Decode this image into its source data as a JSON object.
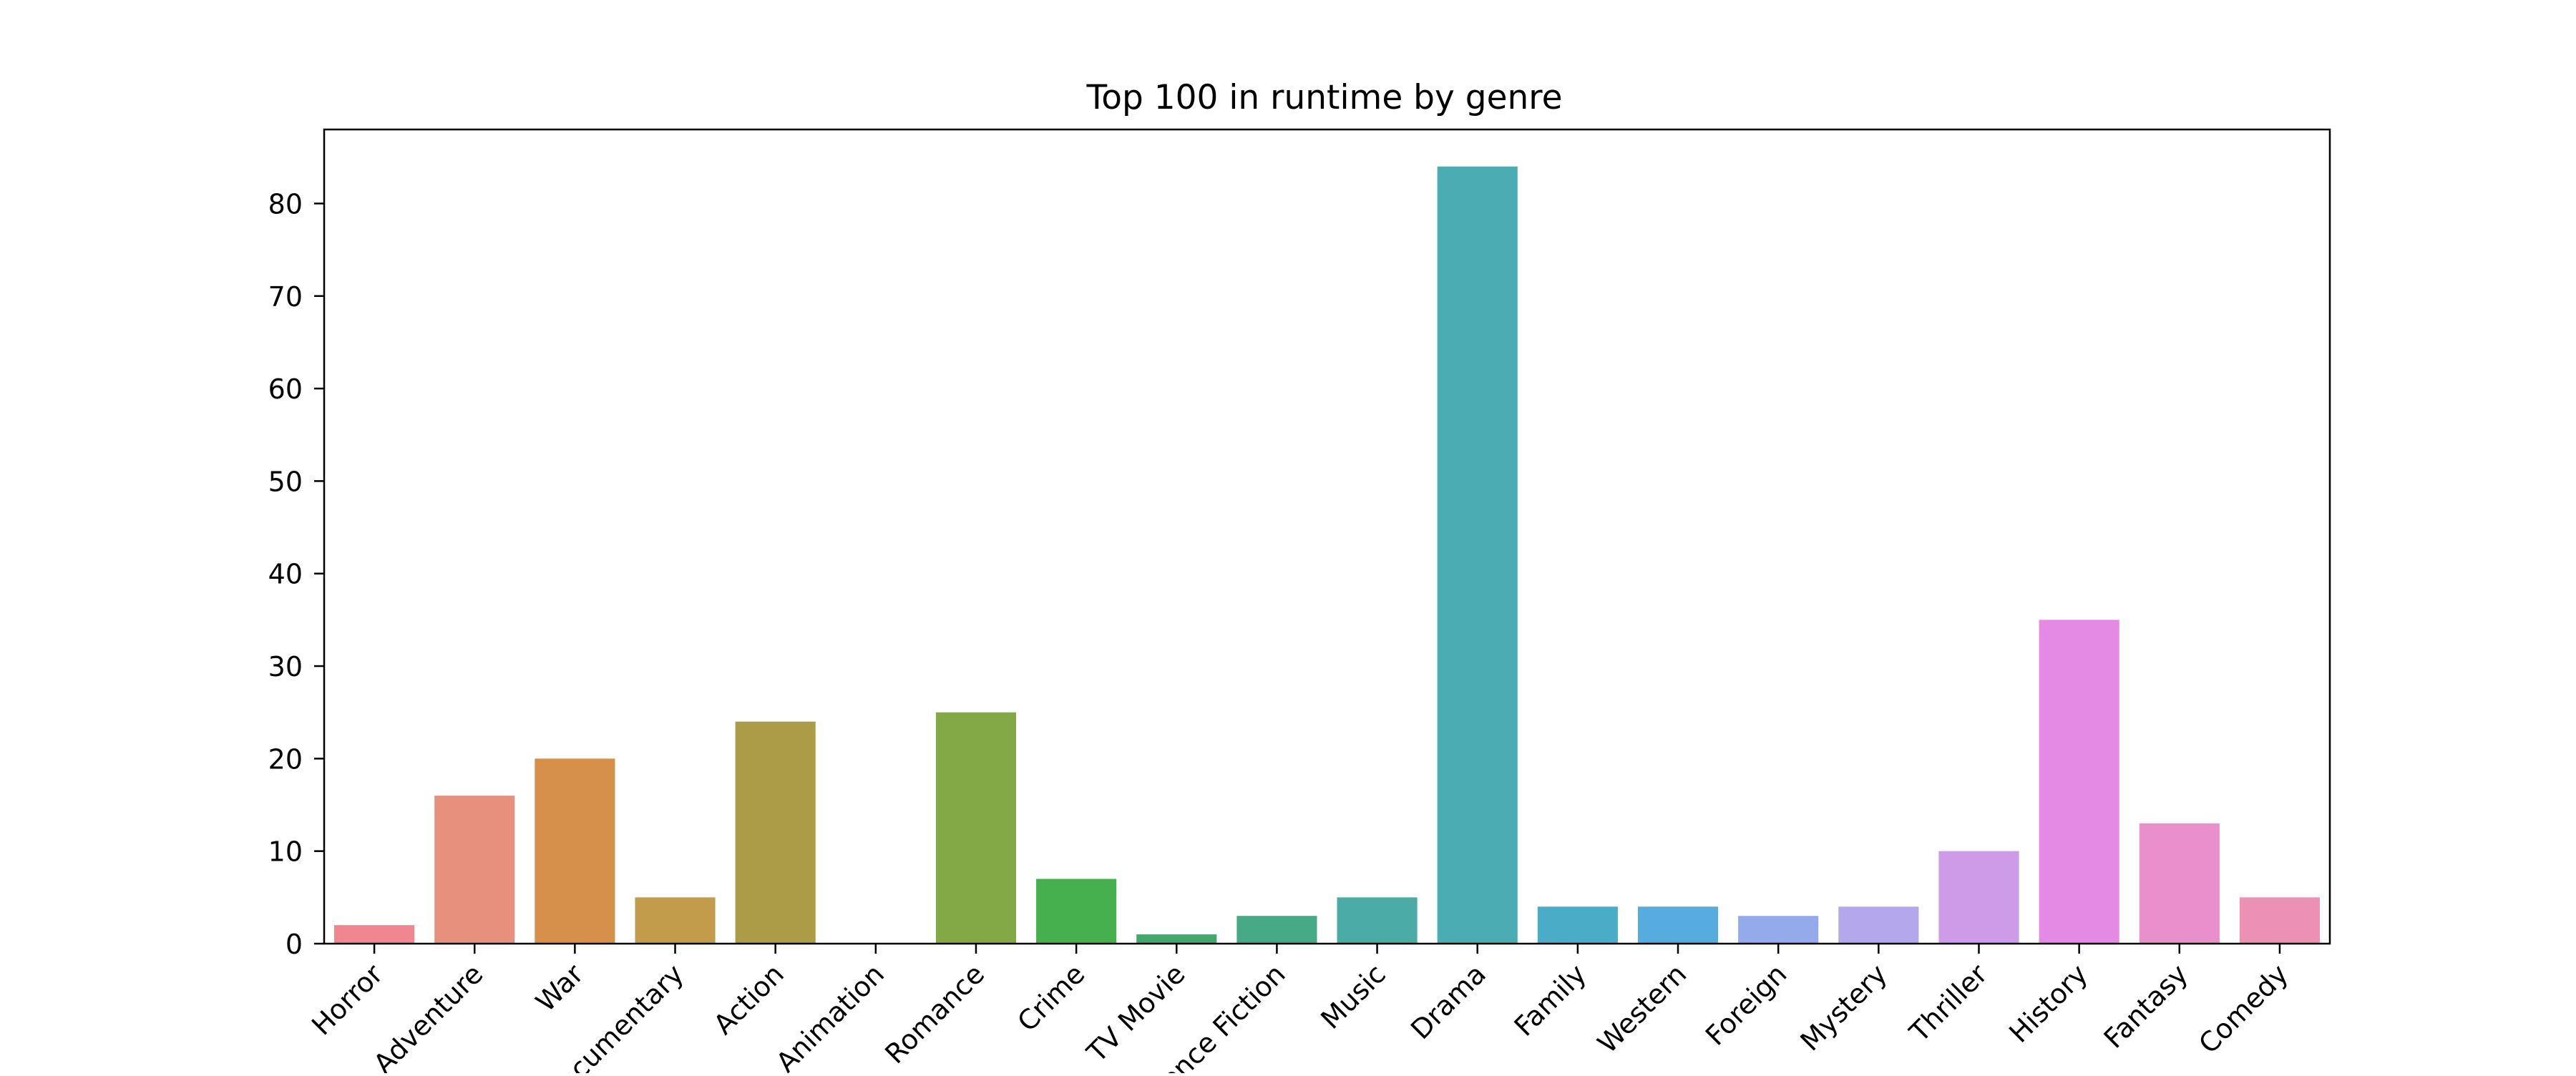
{
  "chart_data": {
    "type": "bar",
    "title": "Top 100 in runtime by genre",
    "xlabel": "",
    "ylabel": "",
    "ylim": [
      0,
      88
    ],
    "yticks": [
      0,
      10,
      20,
      30,
      40,
      50,
      60,
      70,
      80
    ],
    "grid": false,
    "categories": [
      "Horror",
      "Adventure",
      "War",
      "Documentary",
      "Action",
      "Animation",
      "Romance",
      "Crime",
      "TV Movie",
      "Science Fiction",
      "Music",
      "Drama",
      "Family",
      "Western",
      "Foreign",
      "Mystery",
      "Thriller",
      "History",
      "Fantasy",
      "Comedy"
    ],
    "values": [
      2,
      16,
      20,
      5,
      24,
      0,
      25,
      7,
      1,
      3,
      5,
      84,
      4,
      4,
      3,
      4,
      10,
      35,
      13,
      5
    ],
    "colors": [
      "#f0868f",
      "#e8907e",
      "#d6904b",
      "#c29c4a",
      "#ac9c48",
      "#94a640",
      "#82a946",
      "#46b04f",
      "#44a86c",
      "#47aa86",
      "#4aaca4",
      "#4badb3",
      "#4aacc7",
      "#56abdf",
      "#94aaeb",
      "#b5a7ec",
      "#cd9be8",
      "#e58ae4",
      "#e98fcc",
      "#ec90b5"
    ]
  }
}
